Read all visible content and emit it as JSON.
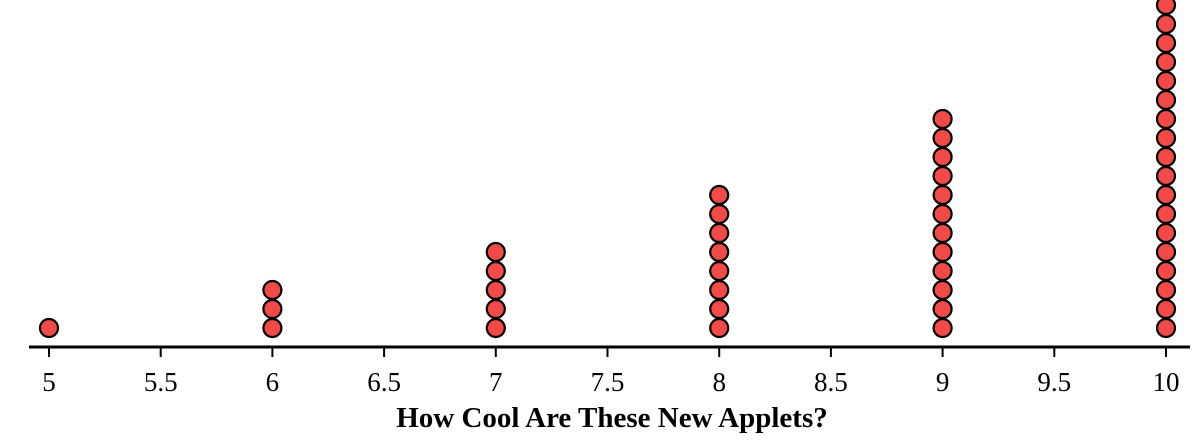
{
  "chart_data": {
    "type": "dot",
    "xlabel": "How Cool Are These New Applets?",
    "xlim": [
      5,
      10
    ],
    "ticks": [
      5,
      5.5,
      6,
      6.5,
      7,
      7.5,
      8,
      8.5,
      9,
      9.5,
      10
    ],
    "tick_labels": [
      "5",
      "5.5",
      "6",
      "6.5",
      "7",
      "7.5",
      "8",
      "8.5",
      "9",
      "9.5",
      "10"
    ],
    "points": [
      {
        "x": 5,
        "count": 1
      },
      {
        "x": 6,
        "count": 3
      },
      {
        "x": 7,
        "count": 5
      },
      {
        "x": 8,
        "count": 8
      },
      {
        "x": 9,
        "count": 12
      },
      {
        "x": 10,
        "count": 18
      }
    ],
    "colors": {
      "dot_fill": "#f24a46",
      "dot_stroke": "#000000",
      "axis": "#000000"
    }
  }
}
